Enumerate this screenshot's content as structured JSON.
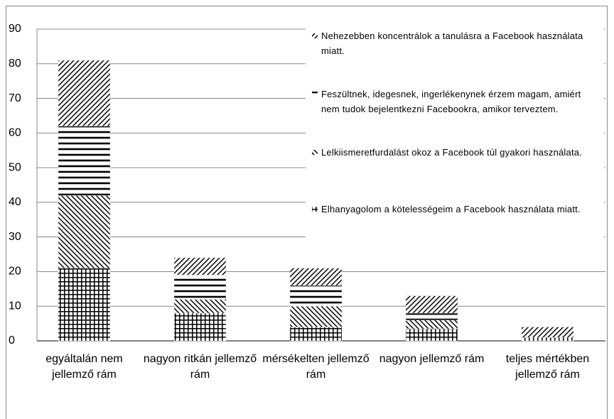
{
  "chart_data": {
    "type": "stacked_bar",
    "categories": [
      "egyáltalán nem jellemző rám",
      "nagyon ritkán jellemző rám",
      "mérsékelten jellemző rám",
      "nagyon jellemző rám",
      "teljes mértékben jellemző rám"
    ],
    "series": [
      {
        "name": "Elhanyagolom a kötelességeim a Facebook használata miatt.",
        "color": "#000000",
        "pattern": "grid",
        "values": [
          21,
          8,
          4,
          3.5,
          1
        ]
      },
      {
        "name": "Lelkiismeretfurdalást okoz a Facebook túl gyakori használata.",
        "color": "#000000",
        "pattern": "back-diagonal",
        "values": [
          21,
          4,
          6,
          2.5,
          0
        ]
      },
      {
        "name": "Feszültnek, idegesnek, ingerlékenynek érzem magam, amiért nem tudok bejelentkezni Facebookra, amikor terveztem.",
        "color": "#000000",
        "pattern": "horizontal",
        "values": [
          20,
          7,
          6,
          2,
          0
        ]
      },
      {
        "name": "Nehezebben koncentrálok a tanulásra a Facebook használata miatt.",
        "color": "#000000",
        "pattern": "diagonal",
        "values": [
          19,
          5,
          5,
          5,
          3
        ]
      }
    ],
    "ylim": [
      0,
      90
    ],
    "yticks": [
      0,
      10,
      20,
      30,
      40,
      50,
      60,
      70,
      80,
      90
    ],
    "grid": true,
    "legend": "right"
  }
}
